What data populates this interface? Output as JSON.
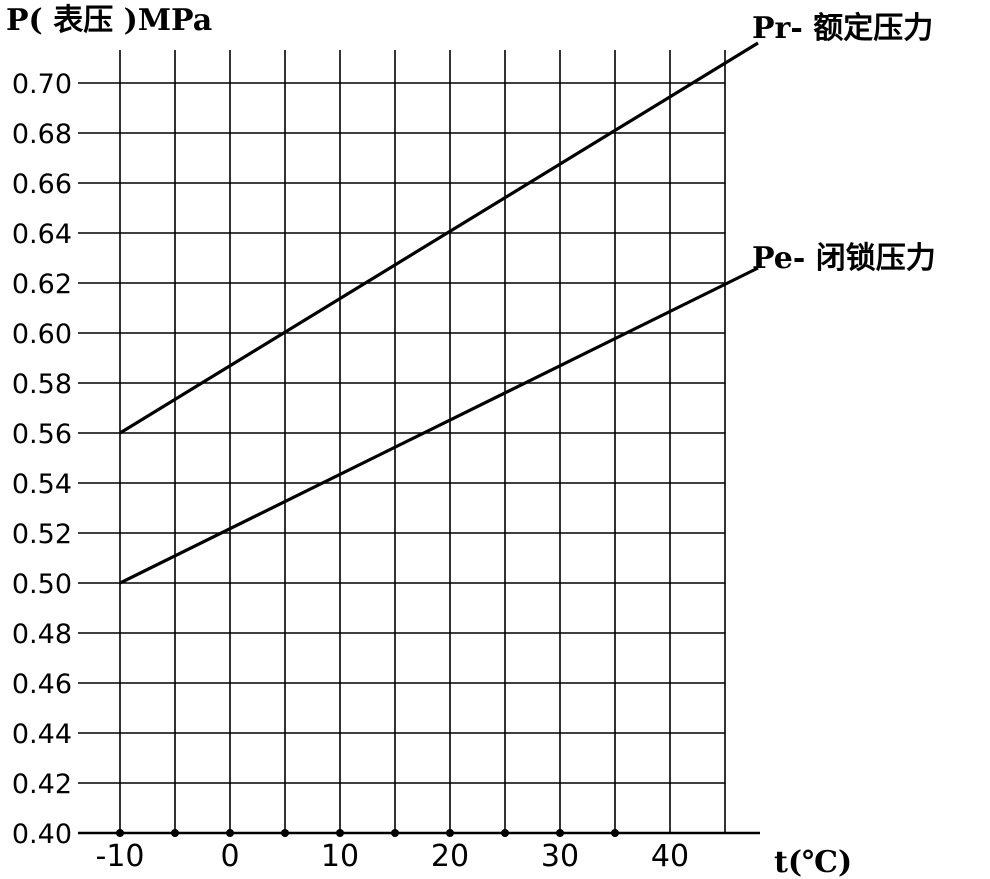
{
  "chart_data": {
    "type": "line",
    "ylabel": "P( 表压 )MPa",
    "xlabel": "t(℃)",
    "x_ticks": [
      -10,
      0,
      10,
      20,
      30,
      40
    ],
    "y_ticks": [
      "0.40",
      "0.42",
      "0.44",
      "0.46",
      "0.48",
      "0.50",
      "0.52",
      "0.54",
      "0.56",
      "0.58",
      "0.60",
      "0.62",
      "0.64",
      "0.66",
      "0.68",
      "0.70"
    ],
    "xlim": [
      -10,
      45
    ],
    "ylim": [
      0.4,
      0.7
    ],
    "grid": true,
    "x_markers": [
      -10,
      -5,
      0,
      5,
      10,
      15,
      20,
      25,
      30,
      35
    ],
    "series": [
      {
        "name": "Pr- 额定压力",
        "x": [
          -10,
          48
        ],
        "y": [
          0.56,
          0.716
        ]
      },
      {
        "name": "Pe- 闭锁压力",
        "x": [
          -10,
          48
        ],
        "y": [
          0.5,
          0.626
        ]
      }
    ]
  }
}
